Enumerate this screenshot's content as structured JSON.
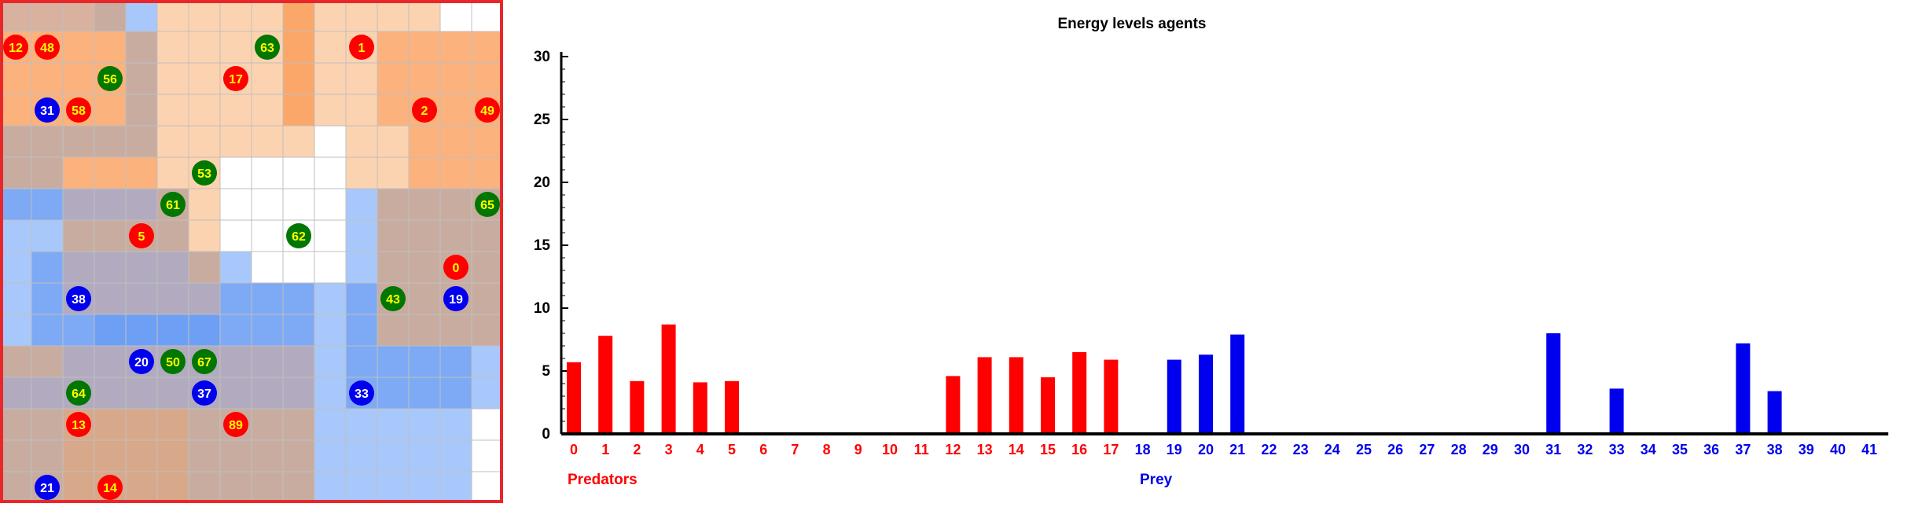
{
  "grid": {
    "cols": 16,
    "rows": 16,
    "cell_colors": [
      [
        "#d8b19f",
        "#d8b19f",
        "#d8b19f",
        "#c8aca0",
        "#a8c8fb",
        "#fcd3b0",
        "#fcd3b0",
        "#fcd3b0",
        "#fcd3b0",
        "#fba76a",
        "#fcd3b0",
        "#fcd3b0",
        "#fcd3b0",
        "#fcd3b0",
        "#ffffff",
        "#ffffff"
      ],
      [
        "#fcb27c",
        "#fcb27c",
        "#fcb27c",
        "#fcb27c",
        "#c9aca0",
        "#fcd3b0",
        "#fcd3b0",
        "#fcd3b0",
        "#fcd3b0",
        "#fba76a",
        "#fcd3b0",
        "#fcd3b0",
        "#fcb27c",
        "#fcb27c",
        "#fcb27c",
        "#fcb27c"
      ],
      [
        "#fcb27c",
        "#fcb27c",
        "#fcb27c",
        "#fcb27c",
        "#c9aca0",
        "#fcd3b0",
        "#fcd3b0",
        "#fcd3b0",
        "#fcd3b0",
        "#fba76a",
        "#fcd3b0",
        "#fcd3b0",
        "#fcb27c",
        "#fcb27c",
        "#fcb27c",
        "#fcb27c"
      ],
      [
        "#fcb27c",
        "#fcb27c",
        "#fcb27c",
        "#fcb27c",
        "#c9aca0",
        "#fcd3b0",
        "#fcd3b0",
        "#fcd3b0",
        "#fcd3b0",
        "#fba76a",
        "#fcd3b0",
        "#fcd3b0",
        "#fcb27c",
        "#fcb27c",
        "#fcb27c",
        "#fcb27c"
      ],
      [
        "#c9aca0",
        "#c9aca0",
        "#c9aca0",
        "#c9aca0",
        "#c9aca0",
        "#fcd3b0",
        "#fcd3b0",
        "#fcd3b0",
        "#fcd3b0",
        "#fcd3b0",
        "#ffffff",
        "#fcd3b0",
        "#fcd3b0",
        "#fcb27c",
        "#fcb27c",
        "#fcb27c"
      ],
      [
        "#c9aca0",
        "#c9aca0",
        "#fcb27c",
        "#fcb27c",
        "#fcb27c",
        "#fcd3b0",
        "#fcd3b0",
        "#ffffff",
        "#ffffff",
        "#ffffff",
        "#ffffff",
        "#fcd3b0",
        "#fcd3b0",
        "#fcb27c",
        "#fcb27c",
        "#fcb27c"
      ],
      [
        "#7eaaf5",
        "#7eaaf5",
        "#b2abbf",
        "#b2abbf",
        "#b2abbf",
        "#c9aca0",
        "#fcd3b0",
        "#ffffff",
        "#ffffff",
        "#ffffff",
        "#ffffff",
        "#a8c8fb",
        "#c9aca0",
        "#c9aca0",
        "#c9aca0",
        "#c9aca0"
      ],
      [
        "#a8c8fb",
        "#a8c8fb",
        "#c9aca0",
        "#c9aca0",
        "#c9aca0",
        "#c9aca0",
        "#fcd3b0",
        "#ffffff",
        "#ffffff",
        "#ffffff",
        "#ffffff",
        "#a8c8fb",
        "#c9aca0",
        "#c9aca0",
        "#c9aca0",
        "#c9aca0"
      ],
      [
        "#a8c8fb",
        "#7eaaf5",
        "#b2abbf",
        "#b2abbf",
        "#b2abbf",
        "#b2abbf",
        "#c9aca0",
        "#a8c8fb",
        "#ffffff",
        "#ffffff",
        "#ffffff",
        "#a8c8fb",
        "#c9aca0",
        "#c9aca0",
        "#c9aca0",
        "#c9aca0"
      ],
      [
        "#a8c8fb",
        "#7eaaf5",
        "#b2abbf",
        "#b2abbf",
        "#b2abbf",
        "#b2abbf",
        "#b2abbf",
        "#7eaaf5",
        "#7eaaf5",
        "#7eaaf5",
        "#a8c8fb",
        "#7eaaf5",
        "#c9aca0",
        "#c9aca0",
        "#c9aca0",
        "#c9aca0"
      ],
      [
        "#a8c8fb",
        "#7eaaf5",
        "#7eaaf5",
        "#6da0f5",
        "#6da0f5",
        "#6da0f5",
        "#6da0f5",
        "#7eaaf5",
        "#7eaaf5",
        "#7eaaf5",
        "#a8c8fb",
        "#7eaaf5",
        "#c9aca0",
        "#c9aca0",
        "#c9aca0",
        "#c9aca0"
      ],
      [
        "#c9aca0",
        "#c9aca0",
        "#b2abbf",
        "#b2abbf",
        "#b2abbf",
        "#b2abbf",
        "#b2abbf",
        "#b2abbf",
        "#b2abbf",
        "#b2abbf",
        "#a8c8fb",
        "#7eaaf5",
        "#7eaaf5",
        "#7eaaf5",
        "#7eaaf5",
        "#a8c8fb"
      ],
      [
        "#b2abbf",
        "#b2abbf",
        "#b2abbf",
        "#b2abbf",
        "#b2abbf",
        "#b2abbf",
        "#b2abbf",
        "#b2abbf",
        "#b2abbf",
        "#b2abbf",
        "#a8c8fb",
        "#7eaaf5",
        "#7eaaf5",
        "#7eaaf5",
        "#7eaaf5",
        "#a8c8fb"
      ],
      [
        "#c9aca0",
        "#c9aca0",
        "#d8a88a",
        "#d8a88a",
        "#d8a88a",
        "#d8a88a",
        "#c9aca0",
        "#c9aca0",
        "#c9aca0",
        "#c9aca0",
        "#a8c8fb",
        "#a8c8fb",
        "#a8c8fb",
        "#a8c8fb",
        "#a8c8fb",
        "#ffffff"
      ],
      [
        "#c9aca0",
        "#c9aca0",
        "#d8a88a",
        "#d8a88a",
        "#d8a88a",
        "#d8a88a",
        "#c9aca0",
        "#c9aca0",
        "#c9aca0",
        "#c9aca0",
        "#a8c8fb",
        "#a8c8fb",
        "#a8c8fb",
        "#a8c8fb",
        "#a8c8fb",
        "#ffffff"
      ],
      [
        "#c9aca0",
        "#c9aca0",
        "#d8a88a",
        "#d8a88a",
        "#d8a88a",
        "#d8a88a",
        "#c9aca0",
        "#c9aca0",
        "#c9aca0",
        "#c9aca0",
        "#a8c8fb",
        "#a8c8fb",
        "#a8c8fb",
        "#a8c8fb",
        "#a8c8fb",
        "#ffffff"
      ]
    ],
    "border_color": "#e8272b",
    "agents": [
      {
        "id": "12",
        "col": 0,
        "row": 1,
        "kind": "predator"
      },
      {
        "id": "48",
        "col": 1,
        "row": 1,
        "kind": "predator"
      },
      {
        "id": "63",
        "col": 8,
        "row": 1,
        "kind": "plant"
      },
      {
        "id": "1",
        "col": 11,
        "row": 1,
        "kind": "predator"
      },
      {
        "id": "56",
        "col": 3,
        "row": 2,
        "kind": "plant"
      },
      {
        "id": "17",
        "col": 7,
        "row": 2,
        "kind": "predator"
      },
      {
        "id": "31",
        "col": 1,
        "row": 3,
        "kind": "prey"
      },
      {
        "id": "58",
        "col": 2,
        "row": 3,
        "kind": "predator"
      },
      {
        "id": "2",
        "col": 13,
        "row": 3,
        "kind": "predator"
      },
      {
        "id": "49",
        "col": 15,
        "row": 3,
        "kind": "predator"
      },
      {
        "id": "53",
        "col": 6,
        "row": 5,
        "kind": "plant"
      },
      {
        "id": "61",
        "col": 5,
        "row": 6,
        "kind": "plant"
      },
      {
        "id": "65",
        "col": 15,
        "row": 6,
        "kind": "plant"
      },
      {
        "id": "5",
        "col": 4,
        "row": 7,
        "kind": "predator"
      },
      {
        "id": "62",
        "col": 9,
        "row": 7,
        "kind": "plant"
      },
      {
        "id": "0",
        "col": 14,
        "row": 8,
        "kind": "predator"
      },
      {
        "id": "38",
        "col": 2,
        "row": 9,
        "kind": "prey"
      },
      {
        "id": "43",
        "col": 12,
        "row": 9,
        "kind": "plant"
      },
      {
        "id": "19",
        "col": 14,
        "row": 9,
        "kind": "prey"
      },
      {
        "id": "20",
        "col": 4,
        "row": 11,
        "kind": "prey"
      },
      {
        "id": "50",
        "col": 5,
        "row": 11,
        "kind": "plant"
      },
      {
        "id": "67",
        "col": 6,
        "row": 11,
        "kind": "plant"
      },
      {
        "id": "64",
        "col": 2,
        "row": 12,
        "kind": "plant"
      },
      {
        "id": "37",
        "col": 6,
        "row": 12,
        "kind": "prey"
      },
      {
        "id": "33",
        "col": 11,
        "row": 12,
        "kind": "prey"
      },
      {
        "id": "13",
        "col": 2,
        "row": 13,
        "kind": "predator"
      },
      {
        "id": "89",
        "col": 7,
        "row": 13,
        "kind": "predator"
      },
      {
        "id": "21",
        "col": 1,
        "row": 15,
        "kind": "prey"
      },
      {
        "id": "14",
        "col": 3,
        "row": 15,
        "kind": "predator"
      }
    ],
    "agent_colors": {
      "predator": "#ff0000",
      "prey": "#0000ee",
      "plant": "#007700"
    },
    "agent_label_colors": {
      "predator": "#ffff00",
      "prey": "#ffffff",
      "plant": "#ffff00"
    }
  },
  "chart_data": {
    "type": "bar",
    "title": "Energy levels agents",
    "ylim": [
      0,
      30
    ],
    "yticks": [
      "0",
      "5",
      "10",
      "15",
      "20",
      "25",
      "30"
    ],
    "categories": [
      "0",
      "1",
      "2",
      "3",
      "4",
      "5",
      "6",
      "7",
      "8",
      "9",
      "10",
      "11",
      "12",
      "13",
      "14",
      "15",
      "16",
      "17",
      "18",
      "19",
      "20",
      "21",
      "22",
      "23",
      "24",
      "25",
      "26",
      "27",
      "28",
      "29",
      "30",
      "31",
      "32",
      "33",
      "34",
      "35",
      "36",
      "37",
      "38",
      "39",
      "40",
      "41"
    ],
    "values": [
      5.7,
      7.8,
      4.2,
      8.7,
      4.1,
      4.2,
      0,
      0,
      0,
      0,
      0,
      0,
      4.6,
      6.1,
      6.1,
      4.5,
      6.5,
      5.9,
      0,
      5.9,
      6.3,
      7.9,
      0,
      0,
      0,
      0,
      0,
      0,
      0,
      0,
      0,
      8.0,
      0,
      3.6,
      0,
      0,
      0,
      7.2,
      3.4,
      0,
      0,
      0
    ],
    "category_groups": [
      "predator",
      "predator",
      "predator",
      "predator",
      "predator",
      "predator",
      "predator",
      "predator",
      "predator",
      "predator",
      "predator",
      "predator",
      "predator",
      "predator",
      "predator",
      "predator",
      "predator",
      "predator",
      "prey",
      "prey",
      "prey",
      "prey",
      "prey",
      "prey",
      "prey",
      "prey",
      "prey",
      "prey",
      "prey",
      "prey",
      "prey",
      "prey",
      "prey",
      "prey",
      "prey",
      "prey",
      "prey",
      "prey",
      "prey",
      "prey",
      "prey",
      "prey"
    ],
    "group_labels": {
      "predator": "Predators",
      "prey": "Prey"
    },
    "colors": {
      "predator": "#ff0000",
      "prey": "#0000ee",
      "axis": "#000000"
    }
  }
}
